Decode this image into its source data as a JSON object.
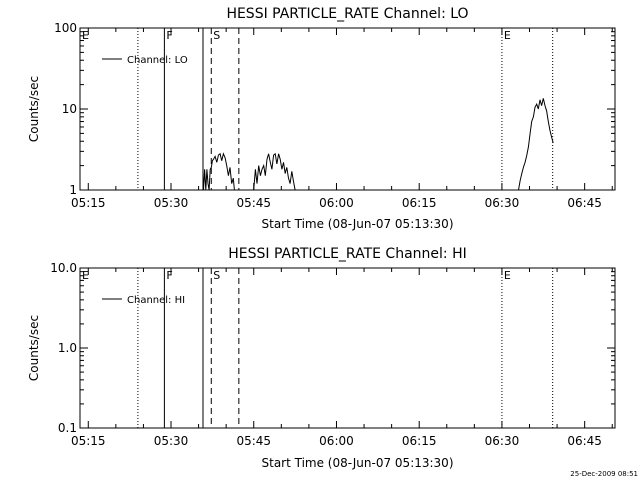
{
  "chart_data": [
    {
      "type": "line",
      "title": "HESSI PARTICLE_RATE Channel: LO",
      "xlabel": "Start Time (08-Jun-07 05:13:30)",
      "ylabel": "Counts/sec",
      "yscale": "log",
      "ylim": [
        1,
        100
      ],
      "xlim_minutes": [
        0,
        97
      ],
      "x_ticks": [
        {
          "min": 1.5,
          "label": "05:15"
        },
        {
          "min": 16.5,
          "label": "05:30"
        },
        {
          "min": 31.5,
          "label": "05:45"
        },
        {
          "min": 46.5,
          "label": "06:00"
        },
        {
          "min": 61.5,
          "label": "06:15"
        },
        {
          "min": 76.5,
          "label": "06:30"
        },
        {
          "min": 91.5,
          "label": "06:45"
        }
      ],
      "y_ticks": [
        {
          "value": 1,
          "label": "1"
        },
        {
          "value": 10,
          "label": "10"
        },
        {
          "value": 100,
          "label": "100"
        }
      ],
      "legend": "Channel: LO",
      "legend_position": "top-left",
      "markers": [
        {
          "label": "E",
          "min": 0,
          "style": "dotted",
          "labeled": true
        },
        {
          "label": "",
          "min": 10.5,
          "style": "dotted",
          "labeled": false
        },
        {
          "label": "F",
          "min": 15.3,
          "style": "solid",
          "labeled": true
        },
        {
          "label": "",
          "min": 22.3,
          "style": "solid",
          "labeled": false
        },
        {
          "label": "S",
          "min": 23.8,
          "style": "dashed",
          "labeled": true
        },
        {
          "label": "",
          "min": 28.8,
          "style": "dashed",
          "labeled": false
        },
        {
          "label": "E",
          "min": 76.5,
          "style": "dotted",
          "labeled": true
        },
        {
          "label": "",
          "min": 85.7,
          "style": "dotted",
          "labeled": false
        }
      ],
      "series": [
        {
          "name": "Channel: LO",
          "segments": [
            {
              "x": [
                22.4,
                22.6,
                22.8,
                23.0,
                23.2,
                23.4,
                23.6,
                23.8,
                24.0,
                24.2,
                24.5,
                24.8,
                25.1,
                25.4,
                25.7,
                26.0,
                26.3,
                26.6,
                26.9,
                27.2,
                27.5,
                27.8,
                28.0
              ],
              "y": [
                1.0,
                1.8,
                1.0,
                1.8,
                1.2,
                1.0,
                1.8,
                1.9,
                2.3,
                2.4,
                2.6,
                2.2,
                2.7,
                2.8,
                2.3,
                2.8,
                2.5,
                2.0,
                1.5,
                1.9,
                1.2,
                1.4,
                1.0
              ]
            },
            {
              "x": [
                31.5,
                31.8,
                32.1,
                32.4,
                32.7,
                33.0,
                33.3,
                33.6,
                33.9,
                34.2,
                34.5,
                34.8,
                35.1,
                35.4,
                35.7,
                36.0,
                36.3,
                36.6,
                36.9,
                37.2,
                37.5,
                37.8,
                38.1,
                38.4,
                38.7,
                39.0
              ],
              "y": [
                1.0,
                1.8,
                1.2,
                2.0,
                1.5,
                1.8,
                2.0,
                1.5,
                2.4,
                2.8,
                2.2,
                1.8,
                2.7,
                2.8,
                2.1,
                2.8,
                2.4,
                1.8,
                2.2,
                1.6,
                1.9,
                1.4,
                1.2,
                1.7,
                1.3,
                1.0
              ]
            },
            {
              "x": [
                79.5,
                79.8,
                80.1,
                80.4,
                80.7,
                81.0,
                81.3,
                81.6,
                81.9,
                82.2,
                82.5,
                82.8,
                83.1,
                83.4,
                83.7,
                84.0,
                84.3,
                84.6,
                84.9,
                85.2,
                85.5,
                85.8
              ],
              "y": [
                1.0,
                1.3,
                1.6,
                1.9,
                2.2,
                2.7,
                3.4,
                5.0,
                7.0,
                8.0,
                10.5,
                11.5,
                10.0,
                13.0,
                11.0,
                13.5,
                11.0,
                9.5,
                7.0,
                5.5,
                4.5,
                3.8
              ]
            }
          ]
        }
      ]
    },
    {
      "type": "line",
      "title": "HESSI PARTICLE_RATE Channel: HI",
      "xlabel": "Start Time (08-Jun-07 05:13:30)",
      "ylabel": "Counts/sec",
      "yscale": "log",
      "ylim": [
        0.1,
        10
      ],
      "xlim_minutes": [
        0,
        97
      ],
      "x_ticks": [
        {
          "min": 1.5,
          "label": "05:15"
        },
        {
          "min": 16.5,
          "label": "05:30"
        },
        {
          "min": 31.5,
          "label": "05:45"
        },
        {
          "min": 46.5,
          "label": "06:00"
        },
        {
          "min": 61.5,
          "label": "06:15"
        },
        {
          "min": 76.5,
          "label": "06:30"
        },
        {
          "min": 91.5,
          "label": "06:45"
        }
      ],
      "y_ticks": [
        {
          "value": 0.1,
          "label": "0.1"
        },
        {
          "value": 1,
          "label": "1.0"
        },
        {
          "value": 10,
          "label": "10.0"
        }
      ],
      "legend": "Channel: HI",
      "legend_position": "top-left",
      "markers": [
        {
          "label": "E",
          "min": 0,
          "style": "dotted",
          "labeled": true
        },
        {
          "label": "",
          "min": 10.5,
          "style": "dotted",
          "labeled": false
        },
        {
          "label": "F",
          "min": 15.3,
          "style": "solid",
          "labeled": true
        },
        {
          "label": "",
          "min": 22.3,
          "style": "solid",
          "labeled": false
        },
        {
          "label": "S",
          "min": 23.8,
          "style": "dashed",
          "labeled": true
        },
        {
          "label": "",
          "min": 28.8,
          "style": "dashed",
          "labeled": false
        },
        {
          "label": "E",
          "min": 76.5,
          "style": "dotted",
          "labeled": true
        },
        {
          "label": "",
          "min": 85.7,
          "style": "dotted",
          "labeled": false
        }
      ],
      "series": [
        {
          "name": "Channel: HI",
          "segments": []
        }
      ]
    }
  ],
  "timestamp": "25-Dec-2009 08:51"
}
